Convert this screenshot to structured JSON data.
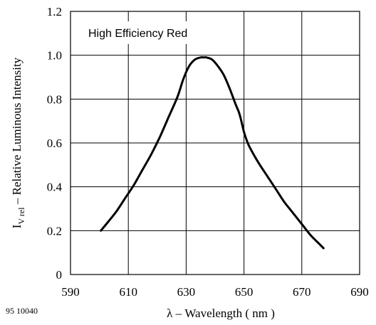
{
  "chart_data": {
    "type": "line",
    "title": "",
    "annotation": "High Efficiency Red",
    "xlabel": "λ – Wavelength ( nm )",
    "ylabel_main": "I",
    "ylabel_sub": "V rel",
    "ylabel_rest": " – Relative Luminous Intensity",
    "xlim": [
      590,
      690
    ],
    "ylim": [
      0,
      1.2
    ],
    "x_ticks": [
      590,
      610,
      630,
      650,
      670,
      690
    ],
    "x_tick_labels": [
      "590",
      "610",
      "630",
      "650",
      "670",
      "690"
    ],
    "y_ticks": [
      0,
      0.2,
      0.4,
      0.6,
      0.8,
      1.0,
      1.2
    ],
    "y_tick_labels": [
      "0",
      "0.2",
      "0.4",
      "0.6",
      "0.8",
      "1.0",
      "1.2"
    ],
    "grid": true,
    "series": [
      {
        "x": [
          600.5,
          603,
          606,
          609,
          612,
          615,
          618,
          621,
          624,
          627,
          629,
          631,
          633,
          635,
          636,
          637,
          639,
          641,
          643,
          645,
          647,
          648.5,
          650,
          651,
          652,
          655,
          658,
          661,
          664,
          667,
          670,
          673,
          676,
          677.5
        ],
        "y": [
          0.2,
          0.24,
          0.29,
          0.35,
          0.41,
          0.48,
          0.55,
          0.63,
          0.72,
          0.81,
          0.89,
          0.95,
          0.98,
          0.99,
          0.99,
          0.99,
          0.98,
          0.95,
          0.91,
          0.85,
          0.78,
          0.73,
          0.65,
          0.61,
          0.58,
          0.51,
          0.45,
          0.39,
          0.33,
          0.28,
          0.23,
          0.18,
          0.14,
          0.12
        ],
        "color": "#000000"
      }
    ]
  },
  "doc_code": "95 10040"
}
